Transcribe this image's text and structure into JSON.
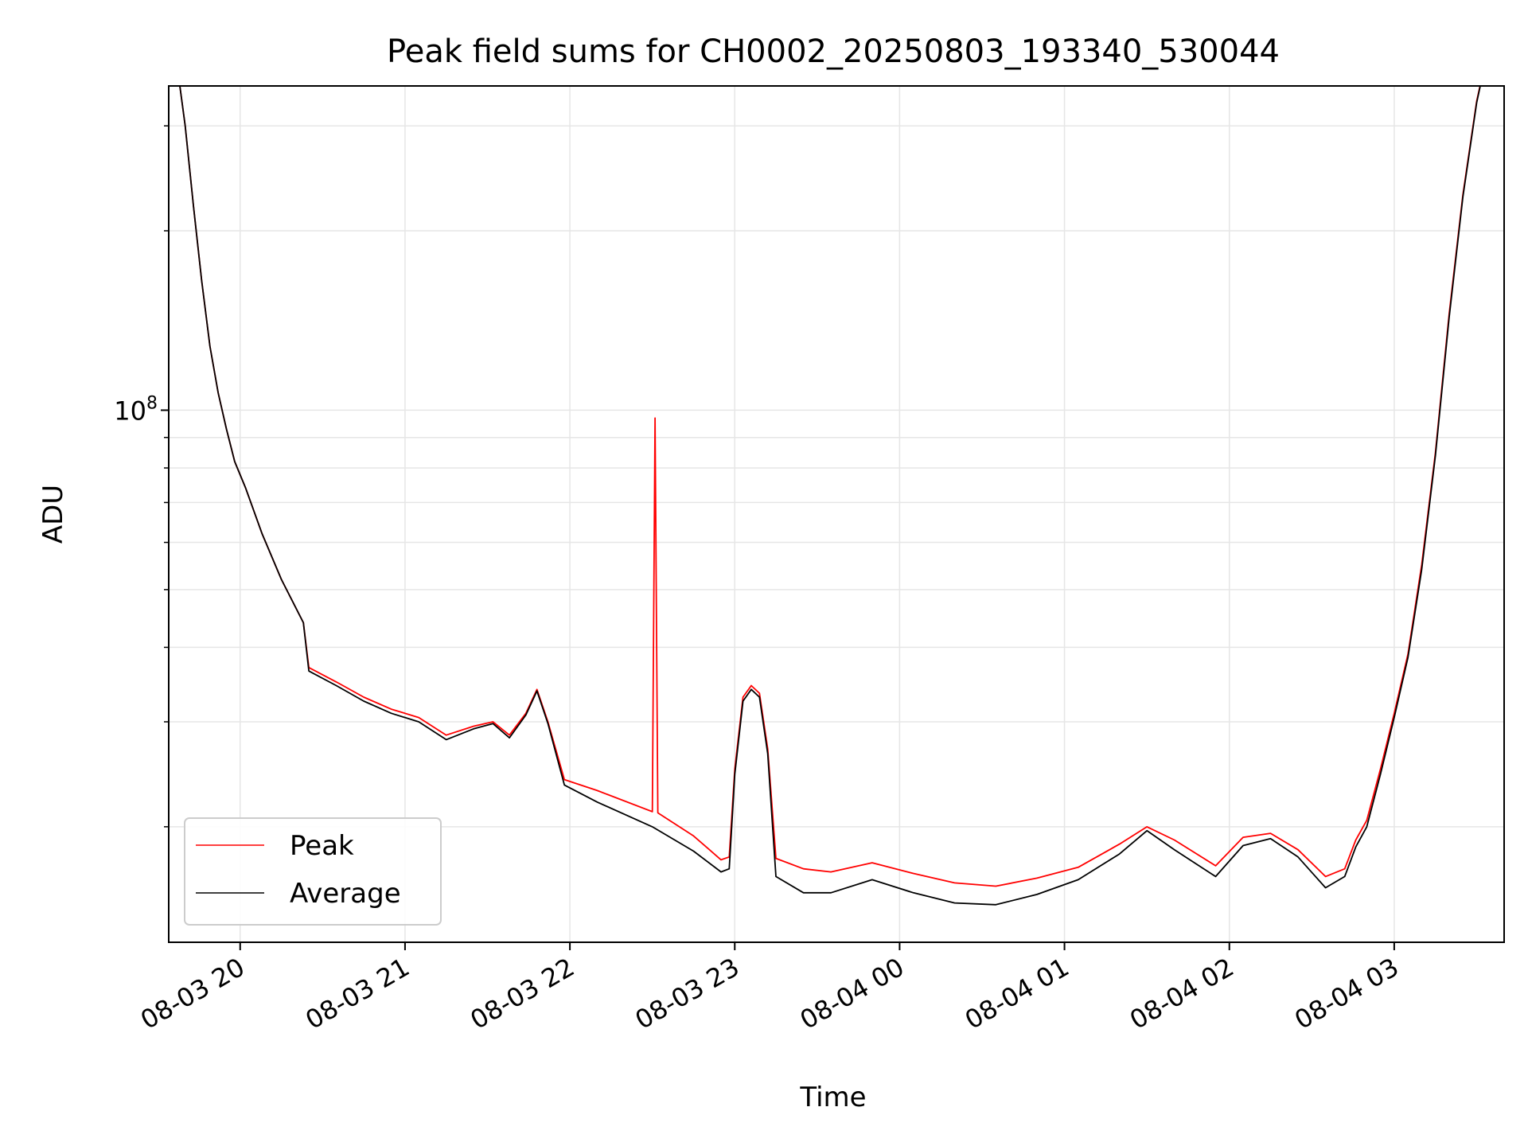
{
  "chart_data": {
    "type": "line",
    "title": "Peak field sums for CH0002_20250803_193340_530044",
    "xlabel": "Time",
    "ylabel": "ADU",
    "yscale": "log",
    "xlim": [
      "2025-08-03T19:34",
      "2025-08-04T03:40"
    ],
    "ylim": [
      12800000,
      350000000
    ],
    "grid": true,
    "legend_position": "lower-left",
    "x_ticks": [
      {
        "t": "2025-08-03T20:00",
        "label": "08-03 20"
      },
      {
        "t": "2025-08-03T21:00",
        "label": "08-03 21"
      },
      {
        "t": "2025-08-03T22:00",
        "label": "08-03 22"
      },
      {
        "t": "2025-08-03T23:00",
        "label": "08-03 23"
      },
      {
        "t": "2025-08-04T00:00",
        "label": "08-04 00"
      },
      {
        "t": "2025-08-04T01:00",
        "label": "08-04 01"
      },
      {
        "t": "2025-08-04T02:00",
        "label": "08-04 02"
      },
      {
        "t": "2025-08-04T03:00",
        "label": "08-04 03"
      }
    ],
    "y_major_ticks": [
      {
        "value": 100000000,
        "base": "10",
        "exp": "8"
      }
    ],
    "y_minor_ticks": [
      20000000,
      30000000,
      40000000,
      50000000,
      60000000,
      70000000,
      80000000,
      90000000,
      200000000,
      300000000
    ],
    "series": [
      {
        "name": "Peak",
        "color": "#ff0000",
        "x": [
          "2025-08-03T19:34",
          "2025-08-03T19:37",
          "2025-08-03T19:40",
          "2025-08-03T19:43",
          "2025-08-03T19:46",
          "2025-08-03T19:49",
          "2025-08-03T19:52",
          "2025-08-03T19:55",
          "2025-08-03T19:58",
          "2025-08-03T20:02",
          "2025-08-03T20:08",
          "2025-08-03T20:15",
          "2025-08-03T20:23",
          "2025-08-03T20:25",
          "2025-08-03T20:35",
          "2025-08-03T20:45",
          "2025-08-03T20:55",
          "2025-08-03T21:05",
          "2025-08-03T21:15",
          "2025-08-03T21:25",
          "2025-08-03T21:32",
          "2025-08-03T21:38",
          "2025-08-03T21:44",
          "2025-08-03T21:48",
          "2025-08-03T21:52",
          "2025-08-03T21:58",
          "2025-08-03T22:10",
          "2025-08-03T22:30",
          "2025-08-03T22:31",
          "2025-08-03T22:32",
          "2025-08-03T22:45",
          "2025-08-03T22:55",
          "2025-08-03T22:58",
          "2025-08-03T23:00",
          "2025-08-03T23:03",
          "2025-08-03T23:06",
          "2025-08-03T23:09",
          "2025-08-03T23:12",
          "2025-08-03T23:15",
          "2025-08-03T23:25",
          "2025-08-03T23:35",
          "2025-08-03T23:50",
          "2025-08-04T00:05",
          "2025-08-04T00:20",
          "2025-08-04T00:35",
          "2025-08-04T00:50",
          "2025-08-04T01:05",
          "2025-08-04T01:20",
          "2025-08-04T01:30",
          "2025-08-04T01:40",
          "2025-08-04T01:55",
          "2025-08-04T02:05",
          "2025-08-04T02:15",
          "2025-08-04T02:25",
          "2025-08-04T02:35",
          "2025-08-04T02:42",
          "2025-08-04T02:46",
          "2025-08-04T02:50",
          "2025-08-04T02:55",
          "2025-08-04T03:00",
          "2025-08-04T03:05",
          "2025-08-04T03:10",
          "2025-08-04T03:15",
          "2025-08-04T03:20",
          "2025-08-04T03:25",
          "2025-08-04T03:30",
          "2025-08-04T03:34"
        ],
        "y": [
          400000000,
          380000000,
          300000000,
          220000000,
          165000000,
          128000000,
          107000000,
          93000000,
          82000000,
          74000000,
          62000000,
          52000000,
          44000000,
          37000000,
          35000000,
          33000000,
          31500000,
          30500000,
          28500000,
          29500000,
          30000000,
          28500000,
          31000000,
          34000000,
          30000000,
          24000000,
          23000000,
          21200000,
          97000000,
          21100000,
          19300000,
          17600000,
          17800000,
          25000000,
          33000000,
          34500000,
          33500000,
          27000000,
          17700000,
          17000000,
          16800000,
          17400000,
          16700000,
          16100000,
          15900000,
          16400000,
          17100000,
          18700000,
          20000000,
          19000000,
          17200000,
          19200000,
          19500000,
          18300000,
          16500000,
          17000000,
          19000000,
          20500000,
          25000000,
          31000000,
          39000000,
          55000000,
          85000000,
          145000000,
          230000000,
          330000000,
          400000000
        ]
      },
      {
        "name": "Average",
        "color": "#000000",
        "x": [
          "2025-08-03T19:34",
          "2025-08-03T19:37",
          "2025-08-03T19:40",
          "2025-08-03T19:43",
          "2025-08-03T19:46",
          "2025-08-03T19:49",
          "2025-08-03T19:52",
          "2025-08-03T19:55",
          "2025-08-03T19:58",
          "2025-08-03T20:02",
          "2025-08-03T20:08",
          "2025-08-03T20:15",
          "2025-08-03T20:23",
          "2025-08-03T20:25",
          "2025-08-03T20:35",
          "2025-08-03T20:45",
          "2025-08-03T20:55",
          "2025-08-03T21:05",
          "2025-08-03T21:15",
          "2025-08-03T21:25",
          "2025-08-03T21:32",
          "2025-08-03T21:38",
          "2025-08-03T21:44",
          "2025-08-03T21:48",
          "2025-08-03T21:52",
          "2025-08-03T21:58",
          "2025-08-03T22:10",
          "2025-08-03T22:30",
          "2025-08-03T22:45",
          "2025-08-03T22:55",
          "2025-08-03T22:58",
          "2025-08-03T23:00",
          "2025-08-03T23:03",
          "2025-08-03T23:06",
          "2025-08-03T23:09",
          "2025-08-03T23:12",
          "2025-08-03T23:15",
          "2025-08-03T23:25",
          "2025-08-03T23:35",
          "2025-08-03T23:50",
          "2025-08-04T00:05",
          "2025-08-04T00:20",
          "2025-08-04T00:35",
          "2025-08-04T00:50",
          "2025-08-04T01:05",
          "2025-08-04T01:20",
          "2025-08-04T01:30",
          "2025-08-04T01:40",
          "2025-08-04T01:55",
          "2025-08-04T02:05",
          "2025-08-04T02:15",
          "2025-08-04T02:25",
          "2025-08-04T02:35",
          "2025-08-04T02:42",
          "2025-08-04T02:46",
          "2025-08-04T02:50",
          "2025-08-04T02:55",
          "2025-08-04T03:00",
          "2025-08-04T03:05",
          "2025-08-04T03:10",
          "2025-08-04T03:15",
          "2025-08-04T03:20",
          "2025-08-04T03:25",
          "2025-08-04T03:30",
          "2025-08-04T03:34"
        ],
        "y": [
          400000000,
          380000000,
          300000000,
          220000000,
          165000000,
          128000000,
          107000000,
          93000000,
          82000000,
          74000000,
          62000000,
          52000000,
          44000000,
          36500000,
          34500000,
          32500000,
          31000000,
          30000000,
          28000000,
          29200000,
          29800000,
          28200000,
          30800000,
          33800000,
          29800000,
          23500000,
          22000000,
          20000000,
          18200000,
          16800000,
          17000000,
          24500000,
          32500000,
          34000000,
          33000000,
          26500000,
          16500000,
          15500000,
          15500000,
          16300000,
          15500000,
          14900000,
          14800000,
          15400000,
          16300000,
          18000000,
          19700000,
          18300000,
          16500000,
          18600000,
          19100000,
          17800000,
          15800000,
          16500000,
          18500000,
          20000000,
          24500000,
          30500000,
          38500000,
          54000000,
          84000000,
          143000000,
          228000000,
          328000000,
          400000000
        ]
      }
    ]
  }
}
